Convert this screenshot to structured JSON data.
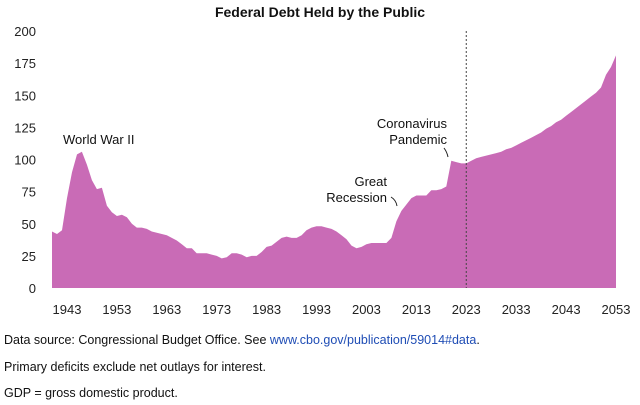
{
  "chart_data": {
    "type": "area",
    "title": "Federal Debt Held by the Public",
    "xlabel": "",
    "ylabel": "",
    "xlim": [
      1940,
      2053
    ],
    "ylim": [
      0,
      200
    ],
    "xticks": [
      1943,
      1953,
      1963,
      1973,
      1983,
      1993,
      2003,
      2013,
      2023,
      2033,
      2043,
      2053
    ],
    "yticks": [
      0,
      25,
      50,
      75,
      100,
      125,
      150,
      175,
      200
    ],
    "grid": false,
    "color": "#c96bb6",
    "divider": {
      "x": 2023,
      "style": "dotted"
    },
    "annotations": [
      {
        "text": "World War II",
        "x": 1946,
        "y": 106
      },
      {
        "text": "Great Recession",
        "x": 2009,
        "y": 52
      },
      {
        "text": "Coronavirus Pandemic",
        "x": 2020,
        "y": 100
      }
    ],
    "series": [
      {
        "x": [
          1940,
          1941,
          1942,
          1943,
          1944,
          1945,
          1946,
          1947,
          1948,
          1949,
          1950,
          1951,
          1952,
          1953,
          1954,
          1955,
          1956,
          1957,
          1958,
          1959,
          1960,
          1961,
          1962,
          1963,
          1964,
          1965,
          1966,
          1967,
          1968,
          1969,
          1970,
          1971,
          1972,
          1973,
          1974,
          1975,
          1976,
          1977,
          1978,
          1979,
          1980,
          1981,
          1982,
          1983,
          1984,
          1985,
          1986,
          1987,
          1988,
          1989,
          1990,
          1991,
          1992,
          1993,
          1994,
          1995,
          1996,
          1997,
          1998,
          1999,
          2000,
          2001,
          2002,
          2003,
          2004,
          2005,
          2006,
          2007,
          2008,
          2009,
          2010,
          2011,
          2012,
          2013,
          2014,
          2015,
          2016,
          2017,
          2018,
          2019,
          2020,
          2021,
          2022,
          2023,
          2024,
          2025,
          2026,
          2027,
          2028,
          2029,
          2030,
          2031,
          2032,
          2033,
          2034,
          2035,
          2036,
          2037,
          2038,
          2039,
          2040,
          2041,
          2042,
          2043,
          2044,
          2045,
          2046,
          2047,
          2048,
          2049,
          2050,
          2051,
          2052,
          2053
        ],
        "values": [
          44,
          42,
          45,
          70,
          90,
          104,
          106,
          96,
          84,
          77,
          78,
          64,
          59,
          56,
          57,
          55,
          50,
          47,
          47,
          46,
          44,
          43,
          42,
          41,
          39,
          37,
          34,
          31,
          31,
          27,
          27,
          27,
          26,
          25,
          23,
          24,
          27,
          27,
          26,
          24,
          25,
          25,
          28,
          32,
          33,
          36,
          39,
          40,
          39,
          39,
          41,
          45,
          47,
          48,
          48,
          47,
          46,
          44,
          41,
          38,
          33,
          31,
          32,
          34,
          35,
          35,
          35,
          35,
          39,
          52,
          60,
          65,
          70,
          72,
          72,
          72,
          76,
          76,
          77,
          79,
          99,
          98,
          97,
          97,
          99,
          101,
          102,
          103,
          104,
          105,
          106,
          108,
          109,
          111,
          113,
          115,
          117,
          119,
          121,
          124,
          126,
          129,
          131,
          134,
          137,
          140,
          143,
          146,
          149,
          152,
          156,
          166,
          172,
          181
        ]
      }
    ]
  },
  "notes": {
    "source_prefix": "Data source: Congressional Budget Office. See ",
    "source_link": "www.cbo.gov/publication/59014#data",
    "source_suffix": ".",
    "primary_deficits": "Primary deficits exclude net outlays for interest.",
    "gdp": "GDP = gross domestic product."
  }
}
